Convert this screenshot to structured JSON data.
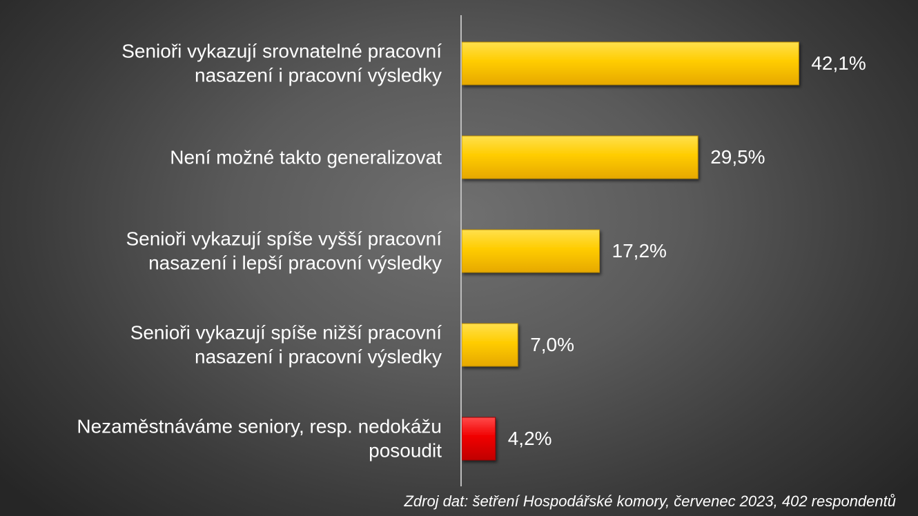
{
  "chart_data": {
    "type": "bar",
    "orientation": "horizontal",
    "categories": [
      "Senioři vykazují srovnatelné pracovní\nnasazení i pracovní výsledky",
      "Není možné takto generalizovat",
      "Senioři vykazují spíše vyšší pracovní\nnasazení i lepší pracovní výsledky",
      "Senioři vykazují spíše nižší pracovní\nnasazení i pracovní výsledky",
      "Nezaměstnáváme seniory, resp. nedokážu\nposoudit"
    ],
    "values": [
      42.1,
      29.5,
      17.2,
      7.0,
      4.2
    ],
    "value_labels": [
      "42,1%",
      "29,5%",
      "17,2%",
      "7,0%",
      "4,2%"
    ],
    "bar_colors": [
      "#ffcc00",
      "#ffcc00",
      "#ffcc00",
      "#ffcc00",
      "#ff0000"
    ],
    "xlim": [
      0,
      100
    ],
    "grid": false,
    "legend": "none",
    "title": "",
    "xlabel": "",
    "ylabel": ""
  },
  "footer": {
    "source": "Zdroj dat: šetření Hospodářské komory, červenec 2023, 402 respondentů"
  }
}
